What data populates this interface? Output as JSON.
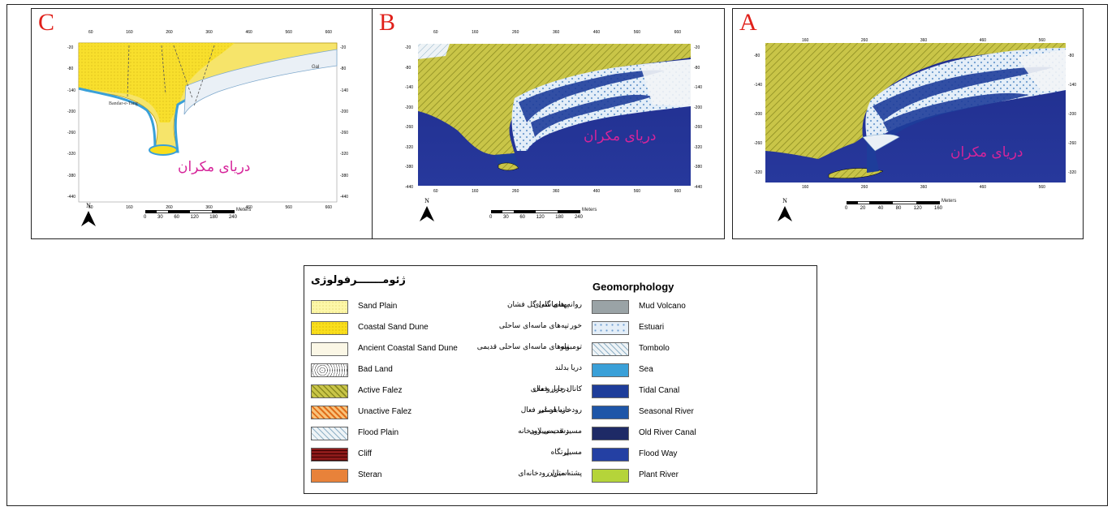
{
  "panels": [
    {
      "letter": "C",
      "sea_label": "دریای مکران",
      "top_ticks": [
        "60",
        "160",
        "260",
        "360",
        "460",
        "560",
        "660"
      ],
      "side_ticks": [
        "-20",
        "-80",
        "-140",
        "-200",
        "-260",
        "-320",
        "-380",
        "-440"
      ],
      "scale": [
        "0",
        "30",
        "60",
        "120",
        "180",
        "240"
      ],
      "scale_unit": "Meters",
      "north": "N",
      "place_label": "Bandar-e-Tang"
    },
    {
      "letter": "B",
      "sea_label": "دریای مکران",
      "top_ticks": [
        "60",
        "160",
        "260",
        "360",
        "460",
        "560",
        "660"
      ],
      "side_ticks": [
        "-20",
        "-80",
        "-140",
        "-200",
        "-260",
        "-320",
        "-380",
        "-440"
      ],
      "scale": [
        "0",
        "30",
        "60",
        "120",
        "180",
        "240"
      ],
      "scale_unit": "Meters",
      "north": "N"
    },
    {
      "letter": "A",
      "sea_label": "دریای مکران",
      "top_ticks": [
        "160",
        "260",
        "360",
        "460",
        "560"
      ],
      "side_ticks": [
        "-80",
        "-140",
        "-200",
        "-260",
        "-320"
      ],
      "scale": [
        "0",
        "20",
        "40",
        "80",
        "120",
        "160"
      ],
      "scale_unit": "Meters",
      "north": "N"
    }
  ],
  "legend": {
    "title_fa": "ژئومـــــــرفولوژی",
    "title_en": "Geomorphology",
    "left_items": [
      {
        "en": "Sand Plain",
        "fa": "پهنه‌ماسه‌ای",
        "color": "#fdf7a8"
      },
      {
        "en": "Coastal Sand Dune",
        "fa": "تپه‌های ماسه‌ای ساحلی",
        "color": "#f9de1c"
      },
      {
        "en": "Ancient Coastal Sand Dune",
        "fa": "تپه‌های ماسه‌ای ساحلی قدیمی",
        "color": "#fbf7e6"
      },
      {
        "en": "Bad Land",
        "fa": "بدلند",
        "color": "#ffffff"
      },
      {
        "en": "Active Falez",
        "fa": "دریابار فعال",
        "color": "#c7c24a"
      },
      {
        "en": "Unactive Falez",
        "fa": "دریابار غیر فعال",
        "color": "#f5a13c"
      },
      {
        "en": "Flood Plain",
        "fa": "دشت سیلابی",
        "color": "#e6eef3"
      },
      {
        "en": "Cliff",
        "fa": "پرتگاه",
        "color": "#8c1a1a"
      },
      {
        "en": "Steran",
        "fa": "استران",
        "color": "#e8823a"
      }
    ],
    "right_items": [
      {
        "en": "Mud Volcano",
        "fa": "روانه های گلی گل فشان",
        "color": "#9aa3a6"
      },
      {
        "en": "Estuari",
        "fa": "خور",
        "color": "#cfe3f5"
      },
      {
        "en": "Tombolo",
        "fa": "تومبولو",
        "color": "#e6f2f9"
      },
      {
        "en": "Sea",
        "fa": "دریا",
        "color": "#3aa0d8"
      },
      {
        "en": "Tidal Canal",
        "fa": "کانال جزر و مدی",
        "color": "#1e3d9a"
      },
      {
        "en": "Seasonal River",
        "fa": "رودخانه فصلی",
        "color": "#1e56a8"
      },
      {
        "en": "Old River Canal",
        "fa": "مسیر قدیمی رودخانه",
        "color": "#1e2a66"
      },
      {
        "en": "Flood Way",
        "fa": "مسیل",
        "color": "#2440a3"
      },
      {
        "en": "Plant River",
        "fa": "پشته میان رودخانه‌ای",
        "color": "#b5d43a"
      }
    ]
  }
}
